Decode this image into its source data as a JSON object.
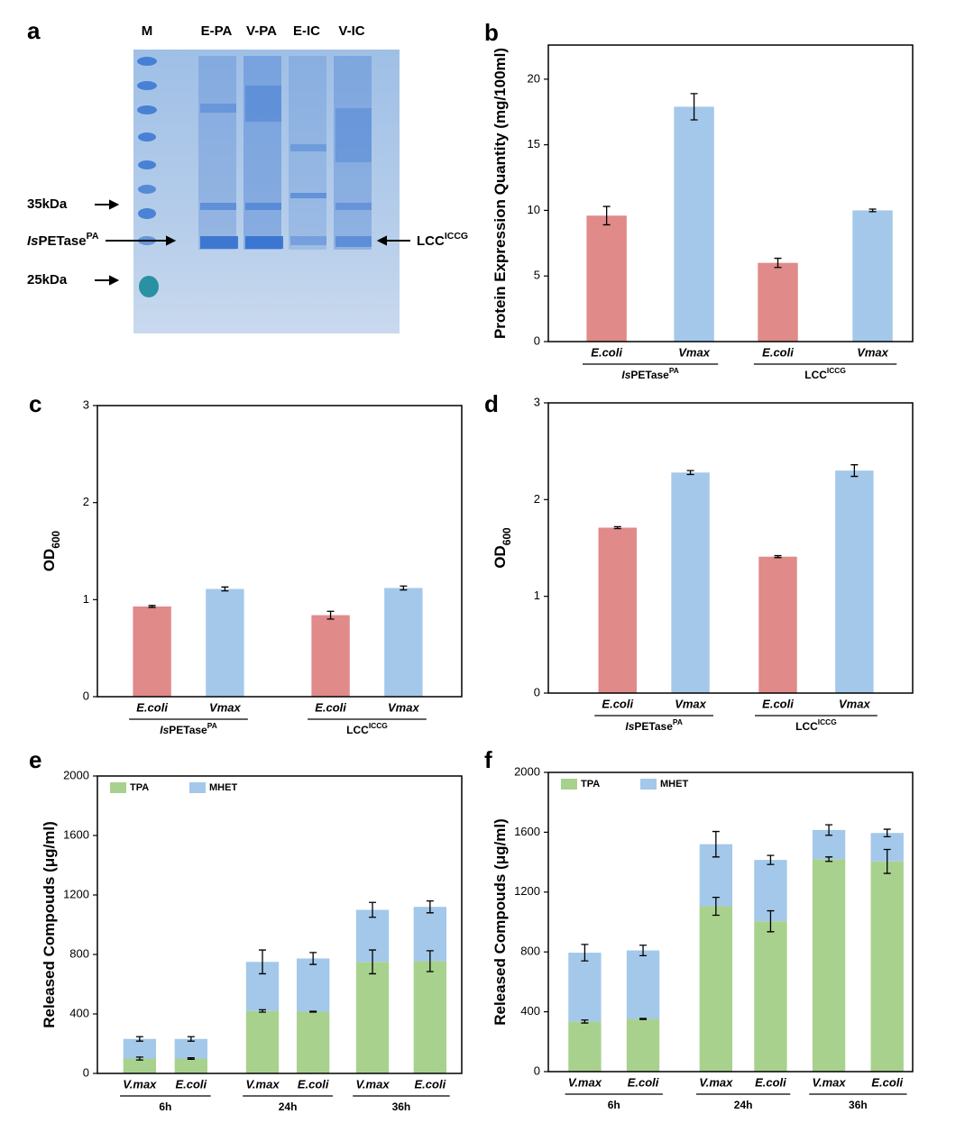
{
  "gel": {
    "panel": "a",
    "lanes": [
      "M",
      "E-PA",
      "V-PA",
      "E-IC",
      "V-IC"
    ],
    "markers": [
      "35kDa",
      "25kDa"
    ],
    "left_label": [
      {
        "t": "Is",
        "style": "italic"
      },
      {
        "t": "PETase"
      },
      {
        "t": "PA",
        "style": "sup"
      }
    ],
    "right_label": [
      {
        "t": "LCC"
      },
      {
        "t": "ICCG",
        "style": "sup"
      }
    ]
  },
  "chart_data": [
    {
      "type": "bar",
      "panel": "b",
      "y_label": [
        {
          "t": "Protein Expression Quantity (mg/100ml)"
        }
      ],
      "groups": [
        {
          "label": [
            {
              "t": "Is",
              "style": "italic"
            },
            {
              "t": "PETase"
            },
            {
              "t": "PA",
              "style": "sup"
            }
          ],
          "categories": [
            "E.coli",
            "Vmax"
          ]
        },
        {
          "label": [
            {
              "t": "LCC"
            },
            {
              "t": "ICCG",
              "style": "sup"
            }
          ],
          "categories": [
            "E.coli",
            "Vmax"
          ]
        }
      ],
      "values": [
        9.6,
        17.9,
        6.0,
        10.0
      ],
      "errors": [
        0.7,
        1.0,
        0.35,
        0.1
      ],
      "colors": [
        "#e08a8a",
        "#a3c8ea",
        "#e08a8a",
        "#a3c8ea"
      ],
      "ylim": [
        0,
        22.6
      ],
      "yticks": [
        0,
        5,
        10,
        15,
        20
      ]
    },
    {
      "type": "bar",
      "panel": "c",
      "y_label": [
        {
          "t": "OD"
        },
        {
          "t": "600",
          "style": "sub"
        }
      ],
      "groups": [
        {
          "label": [
            {
              "t": "Is",
              "style": "italic"
            },
            {
              "t": "PETase"
            },
            {
              "t": "PA",
              "style": "sup"
            }
          ],
          "categories": [
            "E.coli",
            "Vmax"
          ]
        },
        {
          "label": [
            {
              "t": "LCC"
            },
            {
              "t": "ICCG",
              "style": "sup"
            }
          ],
          "categories": [
            "E.coli",
            "Vmax"
          ]
        }
      ],
      "values": [
        0.93,
        1.11,
        0.84,
        1.12
      ],
      "errors": [
        0.01,
        0.02,
        0.04,
        0.02
      ],
      "colors": [
        "#e08a8a",
        "#a3c8ea",
        "#e08a8a",
        "#a3c8ea"
      ],
      "ylim": [
        0,
        3
      ],
      "yticks": [
        0,
        1,
        2,
        3
      ]
    },
    {
      "type": "bar",
      "panel": "d",
      "y_label": [
        {
          "t": "OD"
        },
        {
          "t": "600",
          "style": "sub"
        }
      ],
      "groups": [
        {
          "label": [
            {
              "t": "Is",
              "style": "italic"
            },
            {
              "t": "PETase"
            },
            {
              "t": "PA",
              "style": "sup"
            }
          ],
          "categories": [
            "E.coli",
            "Vmax"
          ]
        },
        {
          "label": [
            {
              "t": "LCC"
            },
            {
              "t": "ICCG",
              "style": "sup"
            }
          ],
          "categories": [
            "E.coli",
            "Vmax"
          ]
        }
      ],
      "values": [
        1.71,
        2.28,
        1.41,
        2.3
      ],
      "errors": [
        0.01,
        0.02,
        0.01,
        0.06
      ],
      "colors": [
        "#e08a8a",
        "#a3c8ea",
        "#e08a8a",
        "#a3c8ea"
      ],
      "ylim": [
        0,
        3
      ],
      "yticks": [
        0,
        1,
        2,
        3
      ]
    },
    {
      "type": "stacked_bar",
      "panel": "e",
      "y_label": [
        {
          "t": "Released Compouds (μg/ml)"
        }
      ],
      "groups": [
        {
          "label": [
            {
              "t": "6h"
            }
          ],
          "categories": [
            "V.max",
            "E.coli"
          ]
        },
        {
          "label": [
            {
              "t": "24h"
            }
          ],
          "categories": [
            "V.max",
            "E.coli"
          ]
        },
        {
          "label": [
            {
              "t": "36h"
            }
          ],
          "categories": [
            "V.max",
            "E.coli"
          ]
        }
      ],
      "series": [
        {
          "name": "TPA",
          "color": "#a9d18e",
          "values": [
            100,
            100,
            420,
            415,
            750,
            755
          ],
          "errors": [
            10,
            5,
            8,
            3,
            80,
            70
          ]
        },
        {
          "name": "MHET",
          "color": "#a3c8ea",
          "values": [
            132,
            132,
            330,
            358,
            350,
            365
          ],
          "errors": [
            15,
            15,
            80,
            40,
            50,
            40
          ]
        }
      ],
      "ylim": [
        0,
        2000
      ],
      "yticks": [
        0,
        400,
        800,
        1200,
        1600,
        2000
      ]
    },
    {
      "type": "stacked_bar",
      "panel": "f",
      "y_label": [
        {
          "t": "Released Compouds (μg/ml)"
        }
      ],
      "groups": [
        {
          "label": [
            {
              "t": "6h"
            }
          ],
          "categories": [
            "V.max",
            "E.coli"
          ]
        },
        {
          "label": [
            {
              "t": "24h"
            }
          ],
          "categories": [
            "V.max",
            "E.coli"
          ]
        },
        {
          "label": [
            {
              "t": "36h"
            }
          ],
          "categories": [
            "V.max",
            "E.coli"
          ]
        }
      ],
      "series": [
        {
          "name": "TPA",
          "color": "#a9d18e",
          "values": [
            335,
            352,
            1105,
            1005,
            1420,
            1405
          ],
          "errors": [
            10,
            3,
            60,
            70,
            15,
            80
          ]
        },
        {
          "name": "MHET",
          "color": "#a3c8ea",
          "values": [
            460,
            458,
            415,
            410,
            195,
            190
          ],
          "errors": [
            55,
            35,
            85,
            30,
            35,
            25
          ]
        }
      ],
      "ylim": [
        0,
        2000
      ],
      "yticks": [
        0,
        400,
        800,
        1200,
        1600,
        2000
      ]
    }
  ]
}
